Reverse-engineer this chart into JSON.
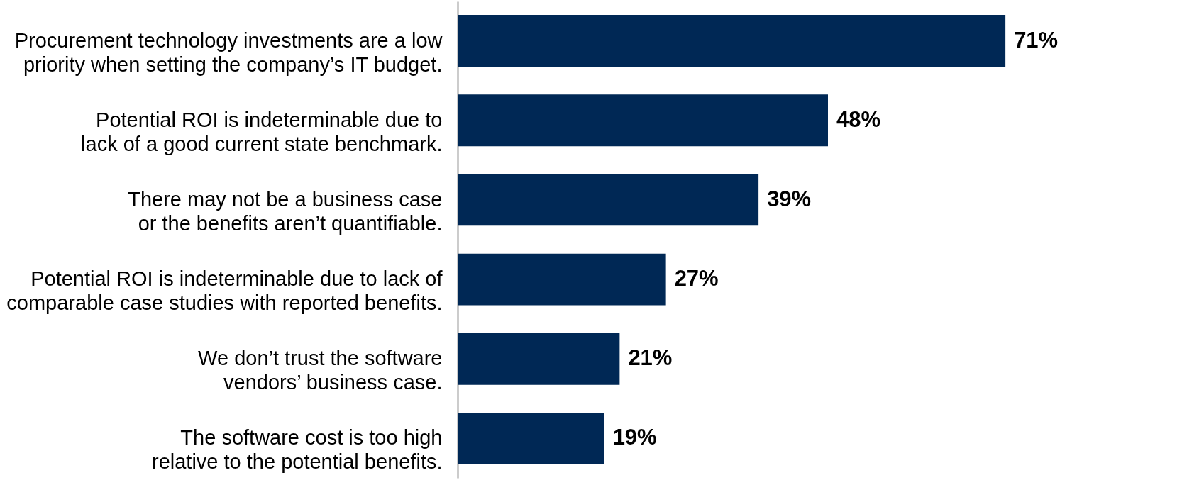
{
  "chart_data": {
    "type": "bar",
    "orientation": "horizontal",
    "categories": [
      "Procurement technology investments are a low\npriority when setting the company’s IT budget.",
      "Potential ROI is indeterminable due to\nlack of a good current state benchmark.",
      "There may not be a business case\nor the benefits aren’t quantifiable.",
      "Potential ROI is indeterminable due to lack of\ncomparable case studies with reported benefits.",
      "We don’t trust the software\nvendors’ business case.",
      "The software cost is too high\nrelative to the potential benefits."
    ],
    "values": [
      71,
      48,
      39,
      27,
      21,
      19
    ],
    "value_labels": [
      "71%",
      "48%",
      "39%",
      "27%",
      "21%",
      "19%"
    ],
    "color": "#002855",
    "xlim": [
      0,
      80
    ],
    "tick_labels": "y",
    "grid": false
  }
}
